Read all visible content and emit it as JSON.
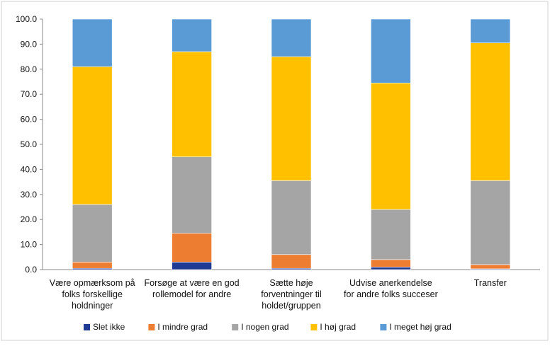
{
  "chart_data": {
    "type": "bar",
    "stacked": true,
    "categories": [
      [
        "Være opmærksom på",
        "folks forskellige",
        "holdninger"
      ],
      [
        "Forsøge at være en god",
        "rollemodel for andre"
      ],
      [
        "Sætte høje",
        "forventninger til",
        "holdet/gruppen"
      ],
      [
        "Udvise anerkendelse",
        "for andre folks succeser"
      ],
      [
        "Transfer"
      ]
    ],
    "series": [
      {
        "name": "Slet ikke",
        "color": "#1f3a93",
        "values": [
          0.5,
          3.0,
          0.5,
          1.0,
          0.3
        ]
      },
      {
        "name": "I mindre grad",
        "color": "#ed7d31",
        "values": [
          2.5,
          11.5,
          5.5,
          3.0,
          1.7
        ]
      },
      {
        "name": "I nogen grad",
        "color": "#a5a5a5",
        "values": [
          23.0,
          30.5,
          29.5,
          20.0,
          33.5
        ]
      },
      {
        "name": "I høj grad",
        "color": "#ffc000",
        "values": [
          55.0,
          42.0,
          49.5,
          50.5,
          55.0
        ]
      },
      {
        "name": "I meget høj grad",
        "color": "#5b9bd5",
        "values": [
          19.0,
          13.0,
          15.0,
          25.5,
          9.5
        ]
      }
    ],
    "yticks": [
      "0.0",
      "10.0",
      "20.0",
      "30.0",
      "40.0",
      "50.0",
      "60.0",
      "70.0",
      "80.0",
      "90.0",
      "100.0"
    ],
    "ylim": [
      0,
      100
    ],
    "grid": false,
    "legend_position": "bottom"
  }
}
